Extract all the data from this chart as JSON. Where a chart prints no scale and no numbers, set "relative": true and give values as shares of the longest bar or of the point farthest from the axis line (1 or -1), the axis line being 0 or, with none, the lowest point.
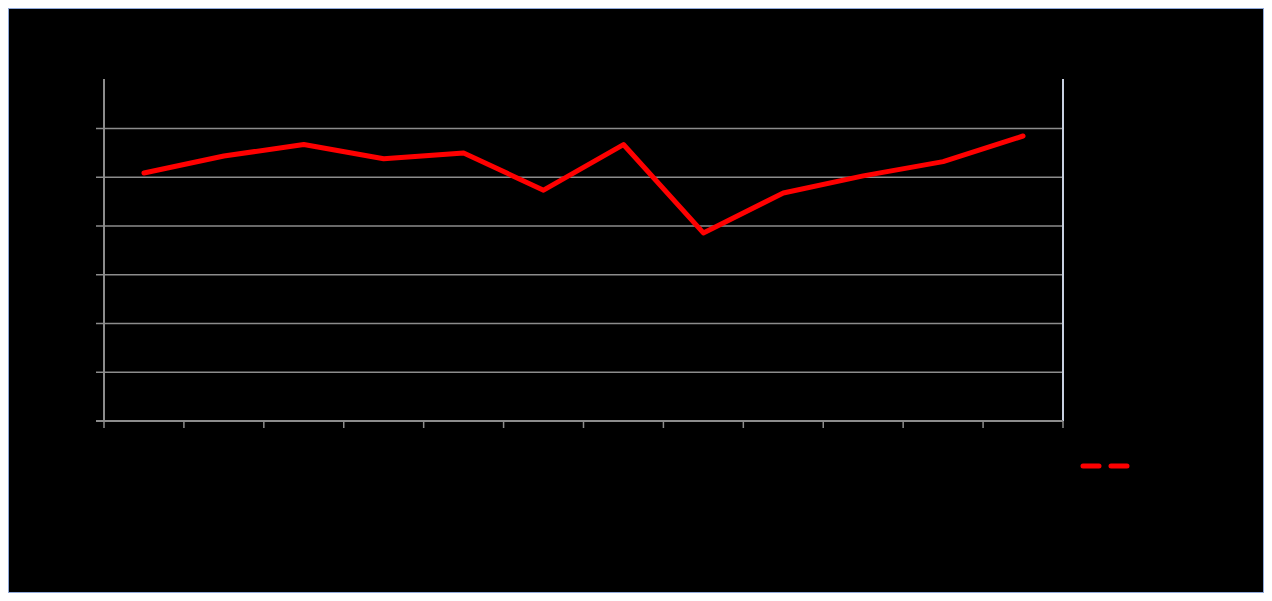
{
  "chart_data": {
    "type": "line",
    "relative": true,
    "categories": [
      null,
      null,
      null,
      null,
      null,
      null,
      null,
      null,
      null,
      null,
      null,
      null
    ],
    "series": [
      {
        "color": "#ff0000",
        "values": [
          0.87,
          0.93,
          0.97,
          0.92,
          0.94,
          0.81,
          0.97,
          0.66,
          0.8,
          0.86,
          0.91,
          1.0
        ]
      }
    ],
    "grid": true,
    "line_style": "solid"
  }
}
